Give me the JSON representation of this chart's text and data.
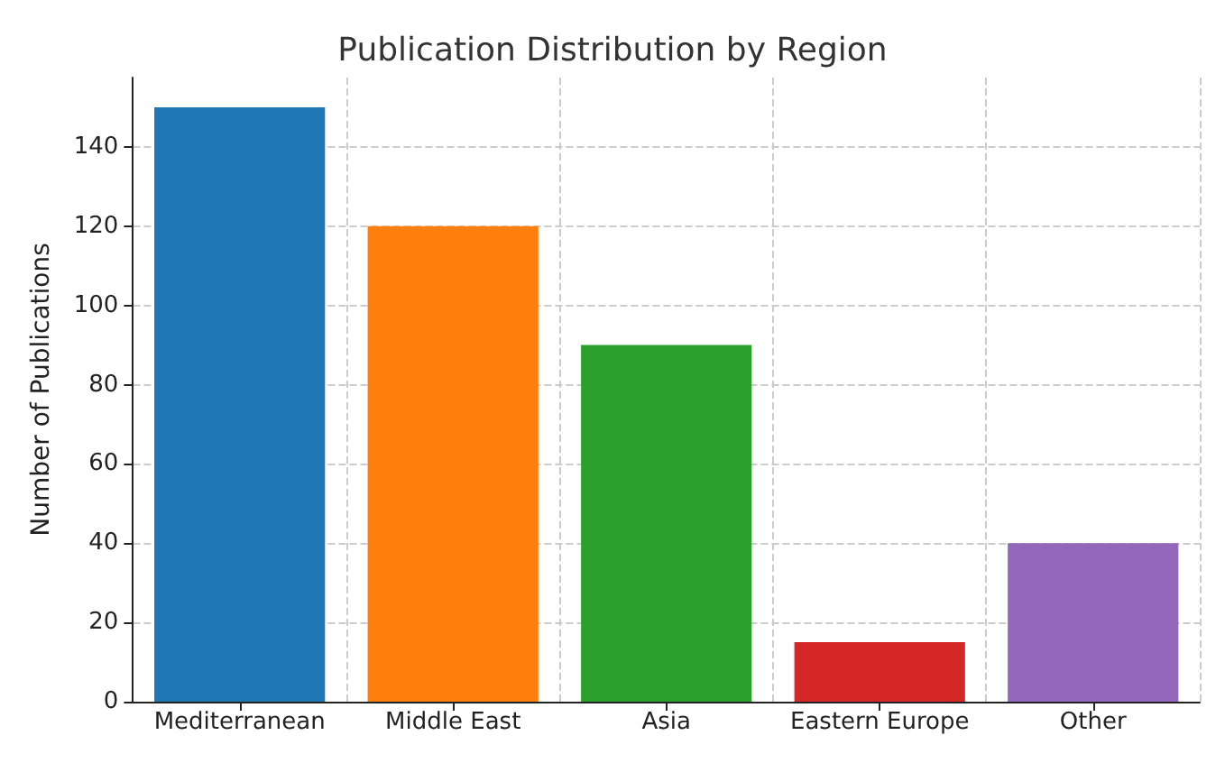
{
  "chart_data": {
    "type": "bar",
    "title": "Publication Distribution by Region",
    "ylabel": "Number of Publications",
    "categories": [
      "Mediterranean",
      "Middle East",
      "Asia",
      "Eastern Europe",
      "Other"
    ],
    "values": [
      150,
      120,
      90,
      15,
      40
    ],
    "colors": [
      "#1f77b4",
      "#ff7f0e",
      "#2ca02c",
      "#d62728",
      "#9467bd"
    ],
    "ylim": [
      0,
      157.5
    ],
    "yticks": [
      0,
      20,
      40,
      60,
      80,
      100,
      120,
      140
    ],
    "grid": true,
    "line_style": "dashed"
  }
}
